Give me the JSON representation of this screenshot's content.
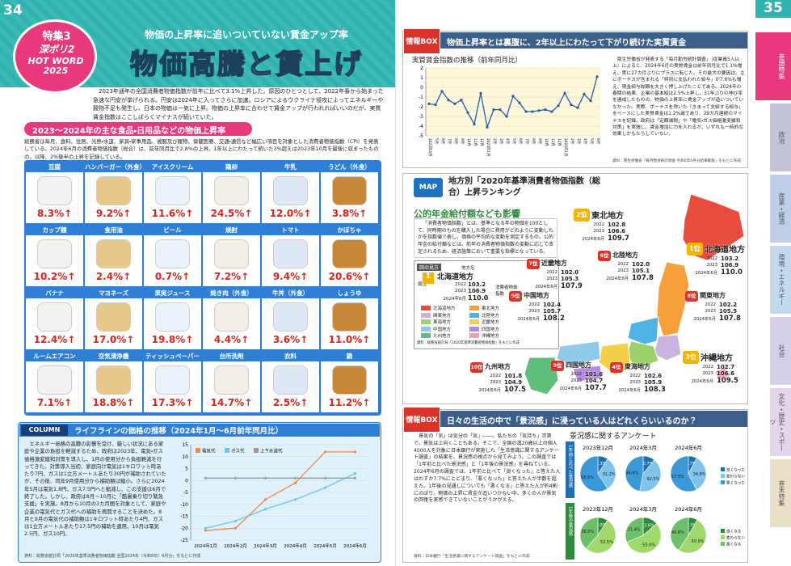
{
  "left_page": {
    "page_number": "34",
    "badge": {
      "label1": "特集3",
      "label2": "深ボリ2",
      "label3": "HOT WORD 2025"
    },
    "subtitle": "物価の上昇率に追いついていない賃金アップ率",
    "title": "物価高騰と賃上げ",
    "intro": "2023年通年の全国消費者物価指数が前年に比べて3.1%上昇した。原因のひとつとして、2022年春から始まった急速な円安が挙げられる。円安は2024年に入ってさらに加速。ロシアによるウクライナ侵攻によってエネルギーや穀物不足も発生し、日本の物価は一気に上昇。物価の上昇率に合わせて賃金アップが行われればいいのだが、実質賃金指数はここしばらくマイナスが続いていた。",
    "section_heading": "2023～2024年の主な食品・日用品などの物価上昇率",
    "section_note": "総務省は毎月、食料、住居、光熱・水道、家具・家事用品、被服及び履物、保健医療、交通・通信など幅広い項目を対象とした消費者物価指数（CPI）を発表している。2024年6月の消費者物価指数（総合）は、前年同月比で2.8%の上昇。1年以上にわたって続いた3%超えは2023年10月を最後に収まったものの、以降、2%後半の上昇を記録している。",
    "items": [
      {
        "name": "豆腐",
        "change": "8.3%↑"
      },
      {
        "name": "ハンバーガー（外食）",
        "change": "9.2%↑"
      },
      {
        "name": "アイスクリーム",
        "change": "11.6%↑"
      },
      {
        "name": "鶏卵",
        "change": "24.5%↑"
      },
      {
        "name": "牛乳",
        "change": "12.0%↑"
      },
      {
        "name": "うどん（外食）",
        "change": "3.8%↑"
      },
      {
        "name": "カップ麺",
        "change": "10.2%↑"
      },
      {
        "name": "食用油",
        "change": "2.4%↑"
      },
      {
        "name": "ビール",
        "change": "0.7%↑"
      },
      {
        "name": "焼酎",
        "change": "7.2%↑"
      },
      {
        "name": "トマト",
        "change": "9.4%↑"
      },
      {
        "name": "かぼちゃ",
        "change": "20.6%↑"
      },
      {
        "name": "バナナ",
        "change": "12.4%↑"
      },
      {
        "name": "マヨネーズ",
        "change": "17.0%↑"
      },
      {
        "name": "果実ジュース",
        "change": "19.8%↑"
      },
      {
        "name": "焼き肉（外食）",
        "change": "4.4%↑"
      },
      {
        "name": "牛丼（外食）",
        "change": "3.6%↑"
      },
      {
        "name": "しょうゆ",
        "change": "11.0%↑"
      },
      {
        "name": "ルームエアコン",
        "change": "7.1%↑"
      },
      {
        "name": "空気清浄機",
        "change": "18.8%↑"
      },
      {
        "name": "ティッシュペーパー",
        "change": "17.3%↑"
      },
      {
        "name": "台所洗剤",
        "change": "14.7%↑"
      },
      {
        "name": "衣料",
        "change": "2.5%↑"
      },
      {
        "name": "鍋",
        "change": "11.2%↑"
      }
    ],
    "column": {
      "tag": "COLUMN",
      "heading": "ライフラインの価格の推移（2024年1月～6月前年同月比）",
      "body": "エネルギー価格の高騰の影響を受け、厳しい状況にある家庭や企業の負担を軽減するため、政府は2023年、電気・ガス価格激変緩和対策を導入し、1月の使用分から負担軽減を行ってきた。対策導入当初、家庭向け電気は1キロワット時あたり7円、ガスは1立方メートルあたり30円が補助されていたが、その後、同年9月使用分から補助額は縮小。さらに2024年5月は電気1.8円、ガス7.5円へと縮減し、この支援は6月で終了した。しかし、政府は8月～10月に「酷暑乗り切り緊急支援」を実施。8月から10月の3カ月間を対象として、家庭や企業の電気代とガス代への補助を再開することを決めた。8月と9月の電気代の補助額は1キロワット時あたり4円、ガスは1立方メートルあたり17.5円の補助を適用、10月は電気2.5円、ガス10円。",
      "source": "資料：総務省統計局「2020年基準消費者物価指数 全国2024年（令和6年）6月分」をもとに作成",
      "chart": {
        "type": "line",
        "categories": [
          "2024年1月",
          "2024年2月",
          "2024年3月",
          "2024年4月",
          "2024年5月",
          "2024年6月"
        ],
        "series": [
          {
            "name": "電気代",
            "color": "#f08a3c",
            "values": [
              -21,
              -20,
              -8,
              -1,
              12,
              12
            ]
          },
          {
            "name": "ガス代",
            "color": "#6ec3ea",
            "values": [
              -20,
              -17,
              -12,
              -8,
              -3,
              3
            ]
          },
          {
            "name": "上下水道代",
            "color": "#9a9a9a",
            "values": [
              1,
              1,
              1,
              1,
              1,
              1
            ]
          }
        ],
        "ylim": [
          -25,
          15
        ],
        "yticks": [
          15,
          10,
          5,
          0,
          -5,
          -10,
          -15,
          -20,
          -25
        ],
        "grid": true
      }
    }
  },
  "right_page": {
    "page_number": "35",
    "tabs": [
      "巻頭特集",
      "政治",
      "産業・経済",
      "環境・エネルギー",
      "社会",
      "文化・歴史・スポーツ",
      "巻末特集"
    ],
    "wage_box": {
      "tag": "情報BOX",
      "heading": "物価上昇率とは裏腹に、2年以上にわたって下がり続けた実質賃金",
      "chart_title": "実質賃金指数の推移（前年同月比）",
      "chart": {
        "type": "line",
        "categories": [
          "2022年4月",
          "5月",
          "6月",
          "7月",
          "8月",
          "9月",
          "10月",
          "11月",
          "12月",
          "2023年1月",
          "2月",
          "3月",
          "4月",
          "5月",
          "6月",
          "7月",
          "8月",
          "9月",
          "10月",
          "11月",
          "12月",
          "2024年1月",
          "2月",
          "3月",
          "4月",
          "5月",
          "6月"
        ],
        "color": "#1f5fae",
        "values": [
          -1.7,
          -1.8,
          -0.4,
          -1.3,
          -1.7,
          -1.3,
          -2.6,
          -3.8,
          -0.6,
          -4.1,
          -2.3,
          -2.3,
          -3.0,
          -0.9,
          -1.6,
          -2.5,
          -2.5,
          -2.4,
          -2.3,
          -2.5,
          -1.9,
          -0.6,
          -1.8,
          -2.1,
          -0.7,
          -1.4,
          1.1
        ],
        "ylim": [
          -5,
          2
        ],
        "yticks": [
          2,
          1,
          0,
          -1,
          -2,
          -3,
          -4,
          -5
        ],
        "grid": true
      },
      "body": "厚生労働省が発表する「毎月勤労統計調査」（従業員5人以上）によると、2024年6月の実質賃金は前年同月比で1.1%増え、実に27カ月ぶりにプラスに転じた。その最大の要因は、主にボーナスが含まれる「特別に支払われた給与」が7.6%も増え、現金給与総額を大きく押し上げたことである。2024年の春闘の結果、企業の基本給は2.5%上昇し、31年ぶりの伸び率を達成したものの、物価の上昇率に賃金アップが追いついていなかった。実際、ボーナスを除いた「きまって支給する給与」をベースにした実質賃金は1.2%減であり、29カ月連続のマイナスを記録。政府は「定額減税」や「電気・ガス価格激変緩和対策」を実施し、賃金増加に力を入れるが、いずれも一時的な効果しかもたらしていない。",
      "source": "資料：厚生労働省「毎月勤労統計調査 令和6年6月分結果確報」をもとに作成"
    },
    "map_box": {
      "tag": "MAP",
      "heading": "地方別「2020年基準消費者物価指数（総合）上昇ランキング",
      "subheading": "公的年金給付額なども影響",
      "body": "「消費者物価指数」とは、基準となる年の物価を100として、同時期のものを購入した場合に費用がどのように変動したかを指数値で表し、価格の平均的な変動を測定するもの。公的年金の給付額などは、前年の消費者物価指数の変動に応じて改定されるため、経済施策において重要な指標となっている。",
      "inset": {
        "title": "図の見方",
        "label_name": "地方名",
        "label_rank": "順位",
        "label_index": "消費者物価指数",
        "example": {
          "rank": "1",
          "name": "北海道地方",
          "rows": [
            {
              "year": "2022",
              "value": "103.2"
            },
            {
              "year": "2023",
              "value": "106.9"
            },
            {
              "year": "2024年6月",
              "value": "110.0"
            }
          ]
        },
        "source": "資料：総務省統計局「2020年基準消費者物価指数」をもとに作成"
      },
      "legend": [
        {
          "name": "北海道地方",
          "color": "#e84c3d"
        },
        {
          "name": "東北地方",
          "color": "#f5a03a"
        },
        {
          "name": "関東地方",
          "color": "#c9b3e0"
        },
        {
          "name": "北陸地方",
          "color": "#4fb3e6"
        },
        {
          "name": "東海地方",
          "color": "#9bd36a"
        },
        {
          "name": "近畿地方",
          "color": "#f2d04b"
        },
        {
          "name": "中国地方",
          "color": "#8ecbe8"
        },
        {
          "name": "四国地方",
          "color": "#b38be0"
        },
        {
          "name": "九州地方",
          "color": "#5fbf7a"
        },
        {
          "name": "沖縄地方",
          "color": "#f59bb5"
        }
      ],
      "regions": [
        {
          "rank": "1位",
          "name": "北海道地方",
          "rows": [
            {
              "year": "2022",
              "value": "103.2"
            },
            {
              "year": "2023",
              "value": "106.9"
            },
            {
              "year": "2024年6月",
              "value": "110.0"
            }
          ]
        },
        {
          "rank": "2位",
          "name": "東北地方",
          "rows": [
            {
              "year": "2022",
              "value": "102.8"
            },
            {
              "year": "2023",
              "value": "106.6"
            },
            {
              "year": "2024年6月",
              "value": "109.7"
            }
          ]
        },
        {
          "rank": "3位",
          "name": "沖縄地方",
          "rows": [
            {
              "year": "2022",
              "value": "102.7"
            },
            {
              "year": "2023",
              "value": "106.6"
            },
            {
              "year": "2024年6月",
              "value": "109.5"
            }
          ]
        },
        {
          "rank": "4位",
          "name": "東海地方",
          "rows": [
            {
              "year": "2022",
              "value": "102.6"
            },
            {
              "year": "2023",
              "value": "105.9"
            },
            {
              "year": "2024年6月",
              "value": "108.3"
            }
          ]
        },
        {
          "rank": "5位",
          "name": "中国地方",
          "rows": [
            {
              "year": "2022",
              "value": "102.4"
            },
            {
              "year": "2023",
              "value": "105.7"
            },
            {
              "year": "2024年6月",
              "value": "108.2"
            }
          ]
        },
        {
          "rank": "6位",
          "name": "北陸地方",
          "rows": [
            {
              "year": "2022",
              "value": "102.0"
            },
            {
              "year": "2023",
              "value": "105.1"
            },
            {
              "year": "2024年6月",
              "value": "107.8"
            }
          ]
        },
        {
          "rank": "7位",
          "name": "近畿地方",
          "rows": [
            {
              "year": "2022",
              "value": "102.0"
            },
            {
              "year": "2023",
              "value": "105.3"
            },
            {
              "year": "2024年6月",
              "value": "107.9"
            }
          ]
        },
        {
          "rank": "8位",
          "name": "関東地方",
          "rows": [
            {
              "year": "2022",
              "value": "102.2"
            },
            {
              "year": "2023",
              "value": "105.5"
            },
            {
              "year": "2024年6月",
              "value": "107.8"
            }
          ]
        },
        {
          "rank": "9位",
          "name": "四国地方",
          "rows": [
            {
              "year": "2022",
              "value": "101.6"
            },
            {
              "year": "2023",
              "value": "104.7"
            },
            {
              "year": "2024年6月",
              "value": "107.7"
            }
          ]
        },
        {
          "rank": "10位",
          "name": "九州地方",
          "rows": [
            {
              "year": "2022",
              "value": "101.8"
            },
            {
              "year": "2023",
              "value": "104.9"
            },
            {
              "year": "2024年6月",
              "value": "107.5"
            }
          ]
        }
      ]
    },
    "sentiment_box": {
      "tag": "情報BOX",
      "heading": "日々の生活の中で「景況感」に浸っている人はどれくらいいるのか？",
      "body": "景気の「気」は気分の「気」――。私たちの「気持ち」次第で、景気は上向くこともある。そこで、全国の満20歳以上の個人4000人を対象に日本銀行が実施した「生活意識に関するアンケート調査」の結果を、景況感の視点から見てみよう。この調査では「1年前と比べた景況感」と「1年後の景況感」を尋ねている。2024年6月の調査では、1年前と比べて「良くなった」と答えた人はわずか7.7%にとどまり、「悪くなった」と答えた人が半数を超えた。1年後の見通しについても「悪くなる」と答えた人が約4割にのぼり、物価の上昇に賃金が追いつかない中、多くの人が景気の回復を実感できていないことがうかがえる。",
      "survey_title": "景況感に関するアンケート",
      "rows": [
        {
          "label": "1年前と比べた景況感",
          "legend": [
            "良くなった",
            "変わらない",
            "悪くなった"
          ],
          "colors": [
            "#1f6fb5",
            "#7fc4ea",
            "#3a9ad9"
          ],
          "pies": [
            {
              "title": "2023年12月",
              "values": [
                9.3,
                31.2,
                58.9
              ],
              "value_labels": [
                "9.3%",
                "31.2%",
                "58.9%"
              ]
            },
            {
              "title": "2024年3月",
              "values": [
                10.7,
                42.5,
                46.8
              ],
              "value_labels": [
                "10.7%",
                "42.5%",
                "46.8%"
              ]
            },
            {
              "title": "2024年6月",
              "values": [
                7.7,
                34.8,
                57.5
              ],
              "value_labels": [
                "7.7%",
                "34.8%",
                "57.5%"
              ]
            }
          ]
        },
        {
          "label": "1年後の景況感",
          "legend": [
            "良くなる",
            "変わらない",
            "悪くなる"
          ],
          "colors": [
            "#2e8b3e",
            "#9fd86b",
            "#6cc06a"
          ],
          "pies": [
            {
              "title": "2023年12月",
              "values": [
                9.0,
                52.5,
                38.5
              ],
              "value_labels": [
                "9.0%",
                "52.5%",
                "38.5%"
              ]
            },
            {
              "title": "2024年3月",
              "values": [
                13.6,
                55.0,
                31.4
              ],
              "value_labels": [
                "13.6%",
                "55.0%",
                "31.4%"
              ]
            },
            {
              "title": "2024年6月",
              "values": [
                8.3,
                50.9,
                40.8
              ],
              "value_labels": [
                "8.3%",
                "50.9%",
                "40.8%"
              ]
            }
          ]
        }
      ],
      "source": "資料：日本銀行「生活意識に関するアンケート調査」をもとに作成"
    }
  }
}
